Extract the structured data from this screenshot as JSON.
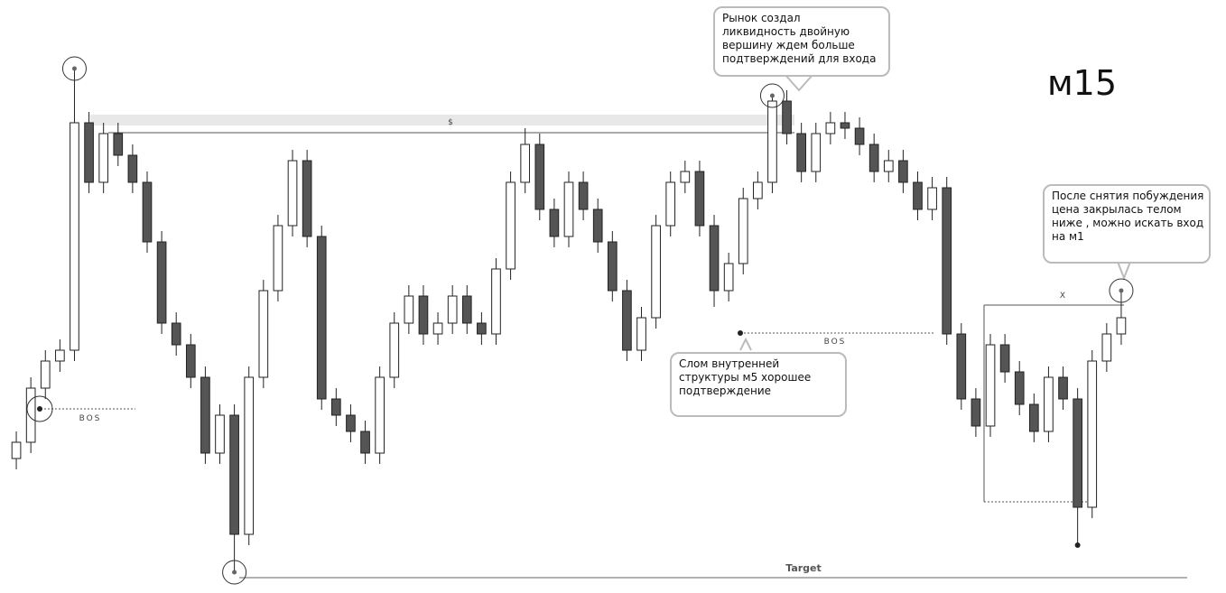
{
  "chart_data": {
    "type": "candlestick",
    "timeframe": "м15",
    "ylim": [
      0,
      100
    ],
    "open": [
      22,
      25,
      35,
      40,
      42,
      84,
      73,
      82,
      78,
      73,
      62,
      47,
      43,
      37,
      23,
      30,
      8,
      37,
      53,
      65,
      77,
      63,
      33,
      30,
      27,
      23,
      37,
      47,
      52,
      45,
      47,
      52,
      47,
      45,
      57,
      73,
      80,
      68,
      63,
      73,
      68,
      62,
      53,
      42,
      48,
      65,
      73,
      75,
      65,
      53,
      58,
      70,
      73,
      88,
      82,
      75,
      82,
      84,
      83,
      80,
      75,
      77,
      73,
      68,
      72,
      45,
      33,
      28,
      43,
      38,
      32,
      27,
      37,
      33,
      13,
      40,
      45
    ],
    "high": [
      27,
      37,
      42,
      44,
      94,
      86,
      84,
      84,
      80,
      75,
      64,
      49,
      45,
      39,
      32,
      32,
      39,
      55,
      67,
      79,
      79,
      65,
      35,
      32,
      29,
      39,
      49,
      54,
      54,
      49,
      54,
      54,
      49,
      59,
      75,
      83,
      82,
      70,
      75,
      75,
      70,
      64,
      55,
      50,
      67,
      75,
      77,
      77,
      67,
      60,
      72,
      75,
      89,
      90,
      84,
      84,
      86,
      86,
      85,
      82,
      79,
      79,
      75,
      74,
      74,
      47,
      35,
      45,
      45,
      40,
      34,
      39,
      39,
      35,
      42,
      47,
      53
    ],
    "low": [
      20,
      23,
      33,
      38,
      40,
      71,
      71,
      76,
      71,
      60,
      45,
      41,
      35,
      21,
      21,
      1,
      6,
      35,
      51,
      63,
      61,
      31,
      28,
      25,
      21,
      21,
      35,
      45,
      43,
      43,
      45,
      45,
      43,
      43,
      55,
      71,
      66,
      61,
      61,
      66,
      60,
      51,
      40,
      40,
      46,
      63,
      71,
      63,
      50,
      51,
      56,
      68,
      71,
      80,
      73,
      73,
      80,
      81,
      78,
      73,
      73,
      71,
      66,
      66,
      43,
      31,
      26,
      26,
      36,
      30,
      25,
      25,
      31,
      6,
      11,
      38,
      43
    ],
    "close": [
      25,
      35,
      40,
      42,
      84,
      73,
      82,
      78,
      73,
      62,
      47,
      43,
      37,
      23,
      30,
      8,
      37,
      53,
      65,
      77,
      63,
      33,
      30,
      27,
      23,
      37,
      47,
      52,
      45,
      47,
      52,
      47,
      45,
      57,
      73,
      80,
      68,
      63,
      73,
      68,
      62,
      53,
      42,
      48,
      65,
      73,
      75,
      65,
      53,
      58,
      70,
      73,
      88,
      82,
      75,
      82,
      84,
      83,
      80,
      75,
      77,
      73,
      68,
      72,
      45,
      33,
      28,
      43,
      38,
      32,
      27,
      37,
      33,
      13,
      40,
      45,
      48
    ],
    "up_color": "#ffffff",
    "down_color": "#555555",
    "edge_color": "#222222",
    "level_labels": [
      "$",
      "BOS",
      "BOS",
      "X",
      "Target"
    ],
    "annotations": [
      {
        "lines": [
          "Рынок создал",
          "ликвидность двойную",
          "вершину ждем больше",
          "подтверждений для входа"
        ]
      },
      {
        "lines": [
          "Слом внутренней",
          "структуры м5 хорошее",
          "подтверждение"
        ]
      },
      {
        "lines": [
          "После снятия побуждения",
          "цена закрылась телом",
          "ниже , можно искать вход",
          "на м1"
        ]
      }
    ]
  }
}
